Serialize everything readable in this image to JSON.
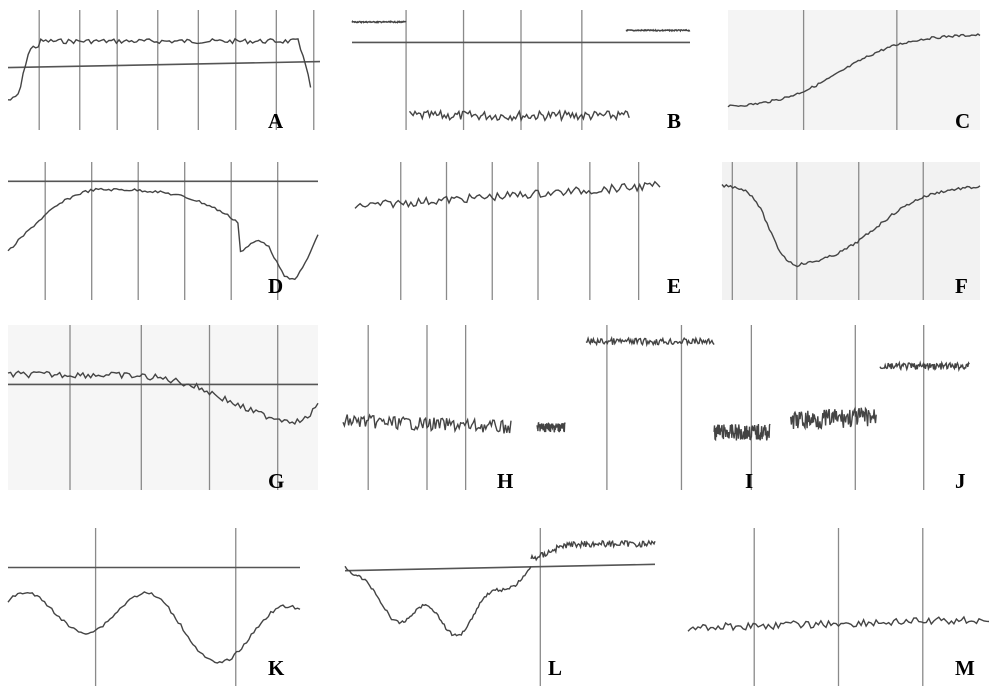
{
  "panels": [
    {
      "label": "A"
    },
    {
      "label": "B"
    },
    {
      "label": "C"
    },
    {
      "label": "D"
    },
    {
      "label": "E"
    },
    {
      "label": "F"
    },
    {
      "label": "G"
    },
    {
      "label": "H"
    },
    {
      "label": "I"
    },
    {
      "label": "J"
    },
    {
      "label": "K"
    },
    {
      "label": "L"
    },
    {
      "label": "M"
    }
  ]
}
